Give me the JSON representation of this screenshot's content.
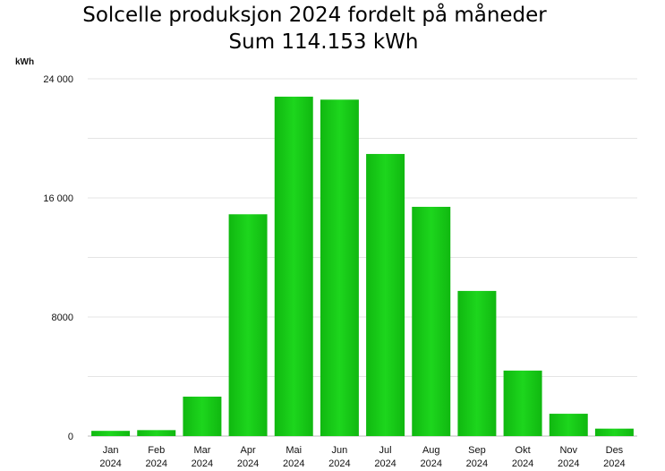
{
  "chart_data": {
    "type": "bar",
    "title": "Solcelle produksjon 2024  fordelt på måneder",
    "subtitle": "Sum  114.153 kWh",
    "ylabel": "kWh",
    "ylim": [
      0,
      24000
    ],
    "yticks": [
      0,
      8000,
      16000,
      24000
    ],
    "ytick_labels": [
      "0",
      "8000",
      "16 000",
      "24 000"
    ],
    "categories": [
      "Jan",
      "Feb",
      "Mar",
      "Apr",
      "Mai",
      "Jun",
      "Jul",
      "Aug",
      "Sep",
      "Okt",
      "Nov",
      "Des"
    ],
    "category_year": "2024",
    "values": [
      350,
      400,
      2650,
      14900,
      22800,
      22600,
      18950,
      15400,
      9750,
      4400,
      1500,
      500
    ],
    "grid": true,
    "bar_color": "#1dd61d",
    "bar_color_dark": "#10b810"
  }
}
